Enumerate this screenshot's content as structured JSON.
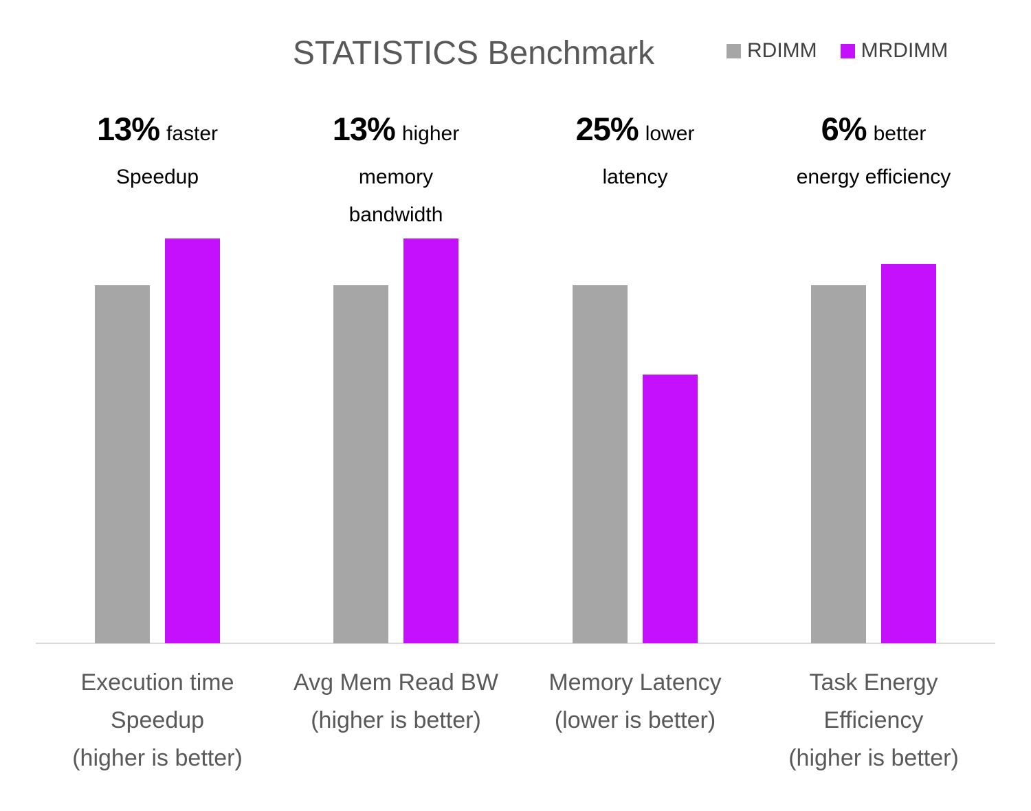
{
  "chart_data": {
    "type": "bar",
    "title": "STATISTICS Benchmark",
    "xlabel": "",
    "ylabel": "",
    "grid": false,
    "y_axis_visible": false,
    "legend_position": "top-right",
    "ylim": [
      0,
      1.2
    ],
    "categories": [
      "Execution time Speedup (higher is better)",
      "Avg Mem Read BW (higher is better)",
      "Memory Latency (lower is better)",
      "Task Energy Efficiency (higher is better)"
    ],
    "category_label_lines": [
      [
        "Execution time",
        "Speedup",
        "(higher is better)"
      ],
      [
        "Avg Mem Read BW",
        "(higher is better)"
      ],
      [
        "Memory Latency",
        "(lower is better)"
      ],
      [
        "Task Energy",
        "Efficiency",
        "(higher is better)"
      ]
    ],
    "series": [
      {
        "name": "RDIMM",
        "color": "#A6A6A6",
        "values": [
          1.0,
          1.0,
          1.0,
          1.0
        ]
      },
      {
        "name": "MRDIMM",
        "color": "#C410FC",
        "values": [
          1.13,
          1.13,
          0.75,
          1.06
        ]
      }
    ],
    "annotations": [
      {
        "pct": "13%",
        "suffix": "faster",
        "extra_lines": [
          "Speedup"
        ]
      },
      {
        "pct": "13%",
        "suffix": "higher",
        "extra_lines": [
          "memory",
          "bandwidth"
        ]
      },
      {
        "pct": "25%",
        "suffix": "lower",
        "extra_lines": [
          "latency"
        ]
      },
      {
        "pct": "6%",
        "suffix": "better",
        "extra_lines": [
          "energy efficiency"
        ]
      }
    ],
    "colors": {
      "title_text": "#595959",
      "legend_text": "#404040",
      "category_text": "#595959",
      "annotation_text": "#000000",
      "axis_line": "#D9D9D9",
      "background": "#FFFFFF"
    }
  }
}
